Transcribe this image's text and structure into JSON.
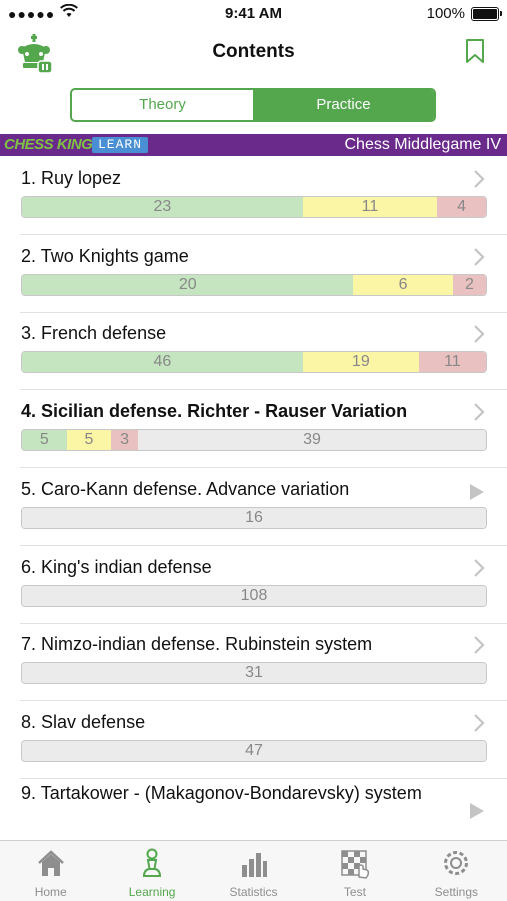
{
  "status": {
    "signal": "●●●●●",
    "time": "9:41 AM",
    "battery": "100%"
  },
  "nav": {
    "title": "Contents"
  },
  "segments": {
    "theory": "Theory",
    "practice": "Practice",
    "active": "practice"
  },
  "banner": {
    "brand": "CHESS KING",
    "learn": "LEARN",
    "book": "Chess Middlegame IV"
  },
  "colors": {
    "accent": "#54a74d",
    "banner_bg": "#6a2a8c",
    "good": "#c5e5c0",
    "medium": "#fbf5a6",
    "bad": "#e9c1c1",
    "neutral": "#ebebeb"
  },
  "chapters": [
    {
      "title": "1. Ruy lopez",
      "bold": false,
      "icon": "chevron-right-icon",
      "green": 23,
      "yellow": 11,
      "red": 4,
      "grey": 0
    },
    {
      "title": "2. Two Knights game",
      "bold": false,
      "icon": "chevron-right-icon",
      "green": 20,
      "yellow": 6,
      "red": 2,
      "grey": 0
    },
    {
      "title": "3. French defense",
      "bold": false,
      "icon": "chevron-right-icon",
      "green": 46,
      "yellow": 19,
      "red": 11,
      "grey": 0
    },
    {
      "title": "4. Sicilian defense. Richter - Rauser Variation",
      "bold": true,
      "icon": "chevron-right-icon",
      "green": 5,
      "yellow": 5,
      "red": 3,
      "grey": 39
    },
    {
      "title": "5. Caro-Kann defense. Advance variation",
      "bold": false,
      "icon": "play-icon",
      "green": 0,
      "yellow": 0,
      "red": 0,
      "grey": 16
    },
    {
      "title": "6. King's indian defense",
      "bold": false,
      "icon": "chevron-right-icon",
      "green": 0,
      "yellow": 0,
      "red": 0,
      "grey": 108
    },
    {
      "title": "7. Nimzo-indian defense. Rubinstein system",
      "bold": false,
      "icon": "chevron-right-icon",
      "green": 0,
      "yellow": 0,
      "red": 0,
      "grey": 31
    },
    {
      "title": "8. Slav defense",
      "bold": false,
      "icon": "chevron-right-icon",
      "green": 0,
      "yellow": 0,
      "red": 0,
      "grey": 47
    },
    {
      "title": "9. Tartakower - (Makagonov-Bondarevsky) system",
      "bold": false,
      "icon": "play-icon",
      "green": 0,
      "yellow": 0,
      "red": 0,
      "grey": 0
    }
  ],
  "tabs": [
    {
      "label": "Home",
      "icon": "home-icon",
      "active": false
    },
    {
      "label": "Learning",
      "icon": "pawn-icon",
      "active": true
    },
    {
      "label": "Statistics",
      "icon": "bar-chart-icon",
      "active": false
    },
    {
      "label": "Test",
      "icon": "chessboard-icon",
      "active": false
    },
    {
      "label": "Settings",
      "icon": "gear-icon",
      "active": false
    }
  ]
}
